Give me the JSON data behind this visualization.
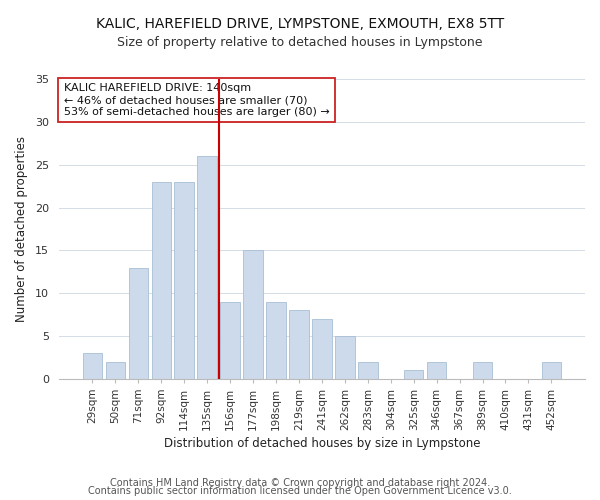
{
  "title": "KALIC, HAREFIELD DRIVE, LYMPSTONE, EXMOUTH, EX8 5TT",
  "subtitle": "Size of property relative to detached houses in Lympstone",
  "xlabel": "Distribution of detached houses by size in Lympstone",
  "ylabel": "Number of detached properties",
  "bar_color": "#ccdaeb",
  "bar_edge_color": "#a8bfd4",
  "grid_color": "#d4dde6",
  "vline_color": "#cc0000",
  "vline_x": 5.5,
  "annotation_line1": "KALIC HAREFIELD DRIVE: 140sqm",
  "annotation_line2": "← 46% of detached houses are smaller (70)",
  "annotation_line3": "53% of semi-detached houses are larger (80) →",
  "categories": [
    "29sqm",
    "50sqm",
    "71sqm",
    "92sqm",
    "114sqm",
    "135sqm",
    "156sqm",
    "177sqm",
    "198sqm",
    "219sqm",
    "241sqm",
    "262sqm",
    "283sqm",
    "304sqm",
    "325sqm",
    "346sqm",
    "367sqm",
    "389sqm",
    "410sqm",
    "431sqm",
    "452sqm"
  ],
  "values": [
    3,
    2,
    13,
    23,
    23,
    26,
    9,
    15,
    9,
    8,
    7,
    5,
    2,
    0,
    1,
    2,
    0,
    2,
    0,
    0,
    2
  ],
  "ylim": [
    0,
    35
  ],
  "yticks": [
    0,
    5,
    10,
    15,
    20,
    25,
    30,
    35
  ],
  "footer1": "Contains HM Land Registry data © Crown copyright and database right 2024.",
  "footer2": "Contains public sector information licensed under the Open Government Licence v3.0.",
  "title_fontsize": 10,
  "subtitle_fontsize": 9,
  "ylabel_fontsize": 8.5,
  "xlabel_fontsize": 8.5,
  "footer_fontsize": 7,
  "background_color": "#ffffff"
}
